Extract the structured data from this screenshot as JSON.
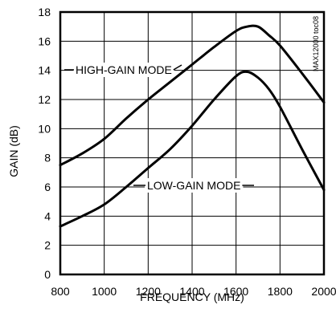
{
  "chart_data": {
    "type": "line",
    "title": "",
    "xlabel": "FREQUENCY (MHz)",
    "ylabel": "GAIN (dB)",
    "xlim": [
      800,
      2000
    ],
    "ylim": [
      0,
      18
    ],
    "grid": true,
    "legend": "inline labels",
    "xticks": [
      "800",
      "1000",
      "1200",
      "1400",
      "1600",
      "1800",
      "2000"
    ],
    "yticks": [
      "0",
      "2",
      "4",
      "6",
      "8",
      "10",
      "12",
      "14",
      "16",
      "18"
    ],
    "x": [
      800,
      900,
      1000,
      1100,
      1200,
      1300,
      1400,
      1500,
      1600,
      1650,
      1700,
      1750,
      1800,
      1900,
      2000
    ],
    "series": [
      {
        "name": "HIGH-GAIN MODE",
        "values": [
          7.5,
          8.3,
          9.3,
          10.7,
          12.0,
          13.2,
          14.4,
          15.6,
          16.7,
          17.0,
          17.0,
          16.4,
          15.7,
          13.8,
          11.8
        ]
      },
      {
        "name": "LOW-GAIN MODE",
        "values": [
          3.3,
          4.0,
          4.8,
          6.0,
          7.3,
          8.6,
          10.2,
          12.0,
          13.6,
          13.9,
          13.5,
          12.7,
          11.5,
          8.6,
          5.8
        ]
      }
    ],
    "annotations": [
      "MAX12000 toc08"
    ]
  }
}
